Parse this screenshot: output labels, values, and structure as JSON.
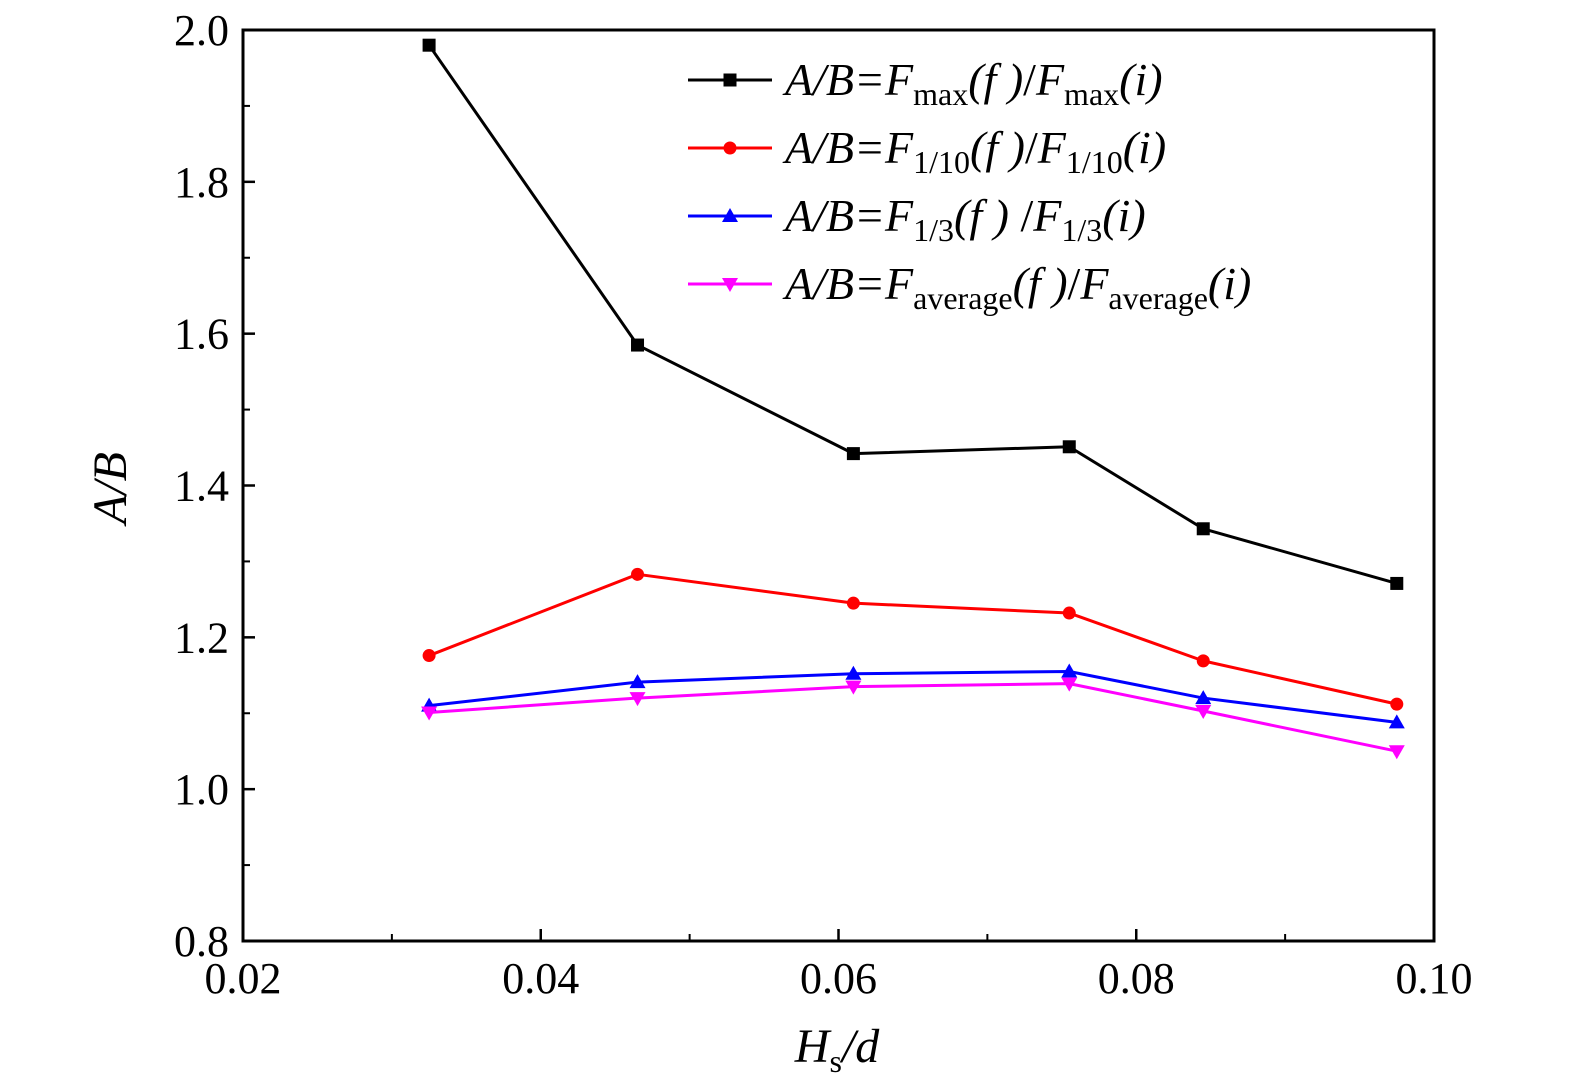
{
  "chart_data": {
    "type": "line",
    "xlabel": {
      "main": "H",
      "sub": "s",
      "tail": "/d"
    },
    "ylabel": "A/B",
    "xlim": [
      0.02,
      0.1
    ],
    "ylim": [
      0.8,
      2.0
    ],
    "x_ticks": [
      "0.02",
      "0.04",
      "0.06",
      "0.08",
      "0.10"
    ],
    "y_ticks": [
      "0.8",
      "1.0",
      "1.2",
      "1.4",
      "1.6",
      "1.8",
      "2.0"
    ],
    "grid": false,
    "legend_position": "top-right",
    "x": [
      0.0325,
      0.0465,
      0.061,
      0.0755,
      0.0845,
      0.0975
    ],
    "series": [
      {
        "name": {
          "lhs": "A/B=",
          "F1": "F",
          "sub1": "max",
          "arg1": "(f )",
          "slash": "/",
          "F2": "F",
          "sub2": "max",
          "arg2": "(i)"
        },
        "marker": "square",
        "color": "#000000",
        "values": [
          1.98,
          1.585,
          1.442,
          1.451,
          1.343,
          1.271
        ]
      },
      {
        "name": {
          "lhs": "A/B=",
          "F1": "F",
          "sub1": "1/10",
          "arg1": "(f )",
          "slash": "/",
          "F2": "F",
          "sub2": "1/10",
          "arg2": "(i)"
        },
        "marker": "circle",
        "color": "#ff0000",
        "values": [
          1.176,
          1.283,
          1.245,
          1.232,
          1.169,
          1.112
        ]
      },
      {
        "name": {
          "lhs": "A/B=",
          "F1": "F",
          "sub1": "1/3",
          "arg1": "(f ) ",
          "slash": "/",
          "F2": "F",
          "sub2": "1/3",
          "arg2": "(i)"
        },
        "marker": "triangle-up",
        "color": "#0000ff",
        "values": [
          1.11,
          1.141,
          1.152,
          1.155,
          1.12,
          1.088
        ]
      },
      {
        "name": {
          "lhs": "A/B=",
          "F1": "F",
          "sub1": "average",
          "arg1": "(f )",
          "slash": "/",
          "F2": "F",
          "sub2": "average",
          "arg2": "(i)"
        },
        "marker": "triangle-down",
        "color": "#ff00ff",
        "values": [
          1.101,
          1.12,
          1.135,
          1.139,
          1.103,
          1.05
        ]
      }
    ]
  }
}
